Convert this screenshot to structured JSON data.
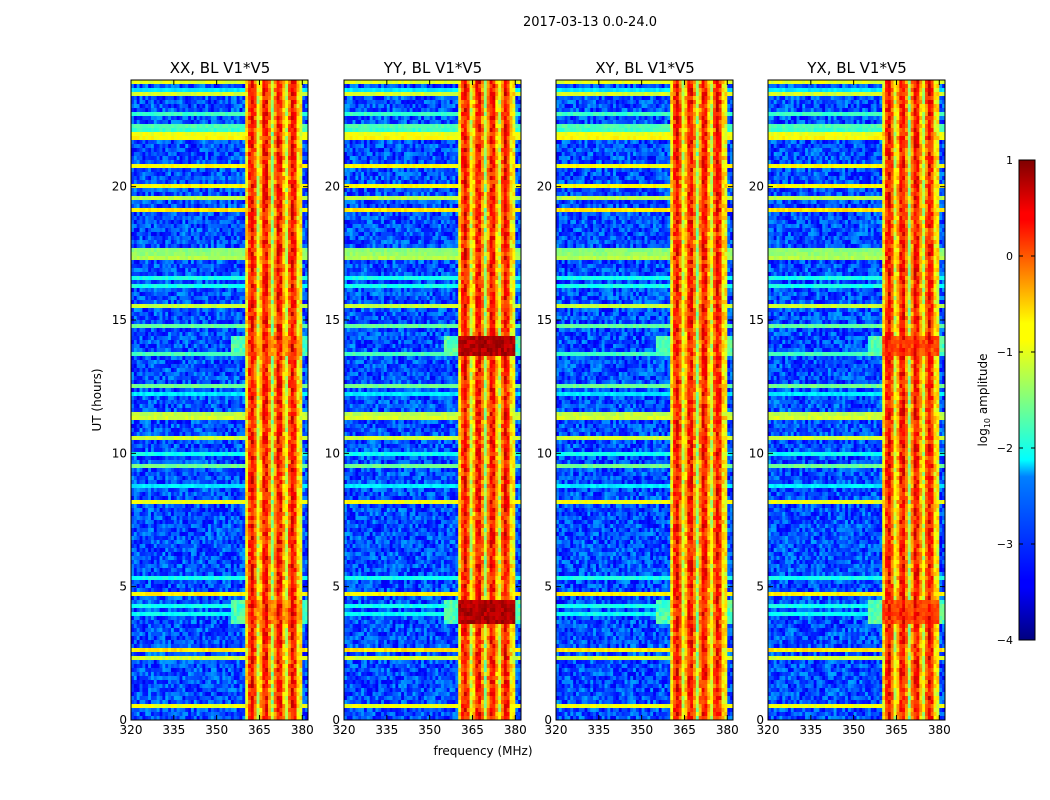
{
  "chart_data": {
    "type": "heatmap",
    "suptitle": "2017-03-13 0.0-24.0",
    "xlabel": "frequency (MHz)",
    "ylabel": "UT (hours)",
    "xlim": [
      320,
      382
    ],
    "ylim": [
      0,
      24
    ],
    "xticks": [
      320,
      335,
      350,
      365,
      380
    ],
    "yticks": [
      0,
      5,
      10,
      15,
      20
    ],
    "panels": [
      {
        "title": "XX, BL V1*V5",
        "event_level": 0.72
      },
      {
        "title": "YY, BL V1*V5",
        "event_level": 0.95
      },
      {
        "title": "XY, BL V1*V5",
        "event_level": 0.5
      },
      {
        "title": "YX, BL V1*V5",
        "event_level": 0.8
      }
    ],
    "features": {
      "band_start_mhz": 360,
      "band_end_mhz": 380,
      "flare_hours": [
        [
          13.6,
          14.4
        ],
        [
          3.6,
          4.5
        ]
      ],
      "noise_floor_log10": -3.0,
      "band_level_log10": -0.5
    },
    "colorbar": {
      "label": "log10 amplitude",
      "min": -4,
      "max": 1,
      "ticks": [
        1,
        0,
        -1,
        -2,
        -3,
        -4
      ],
      "tick_labels": [
        "1",
        "0",
        "−1",
        "−2",
        "−3",
        "−4"
      ],
      "colormap": "jet"
    }
  }
}
